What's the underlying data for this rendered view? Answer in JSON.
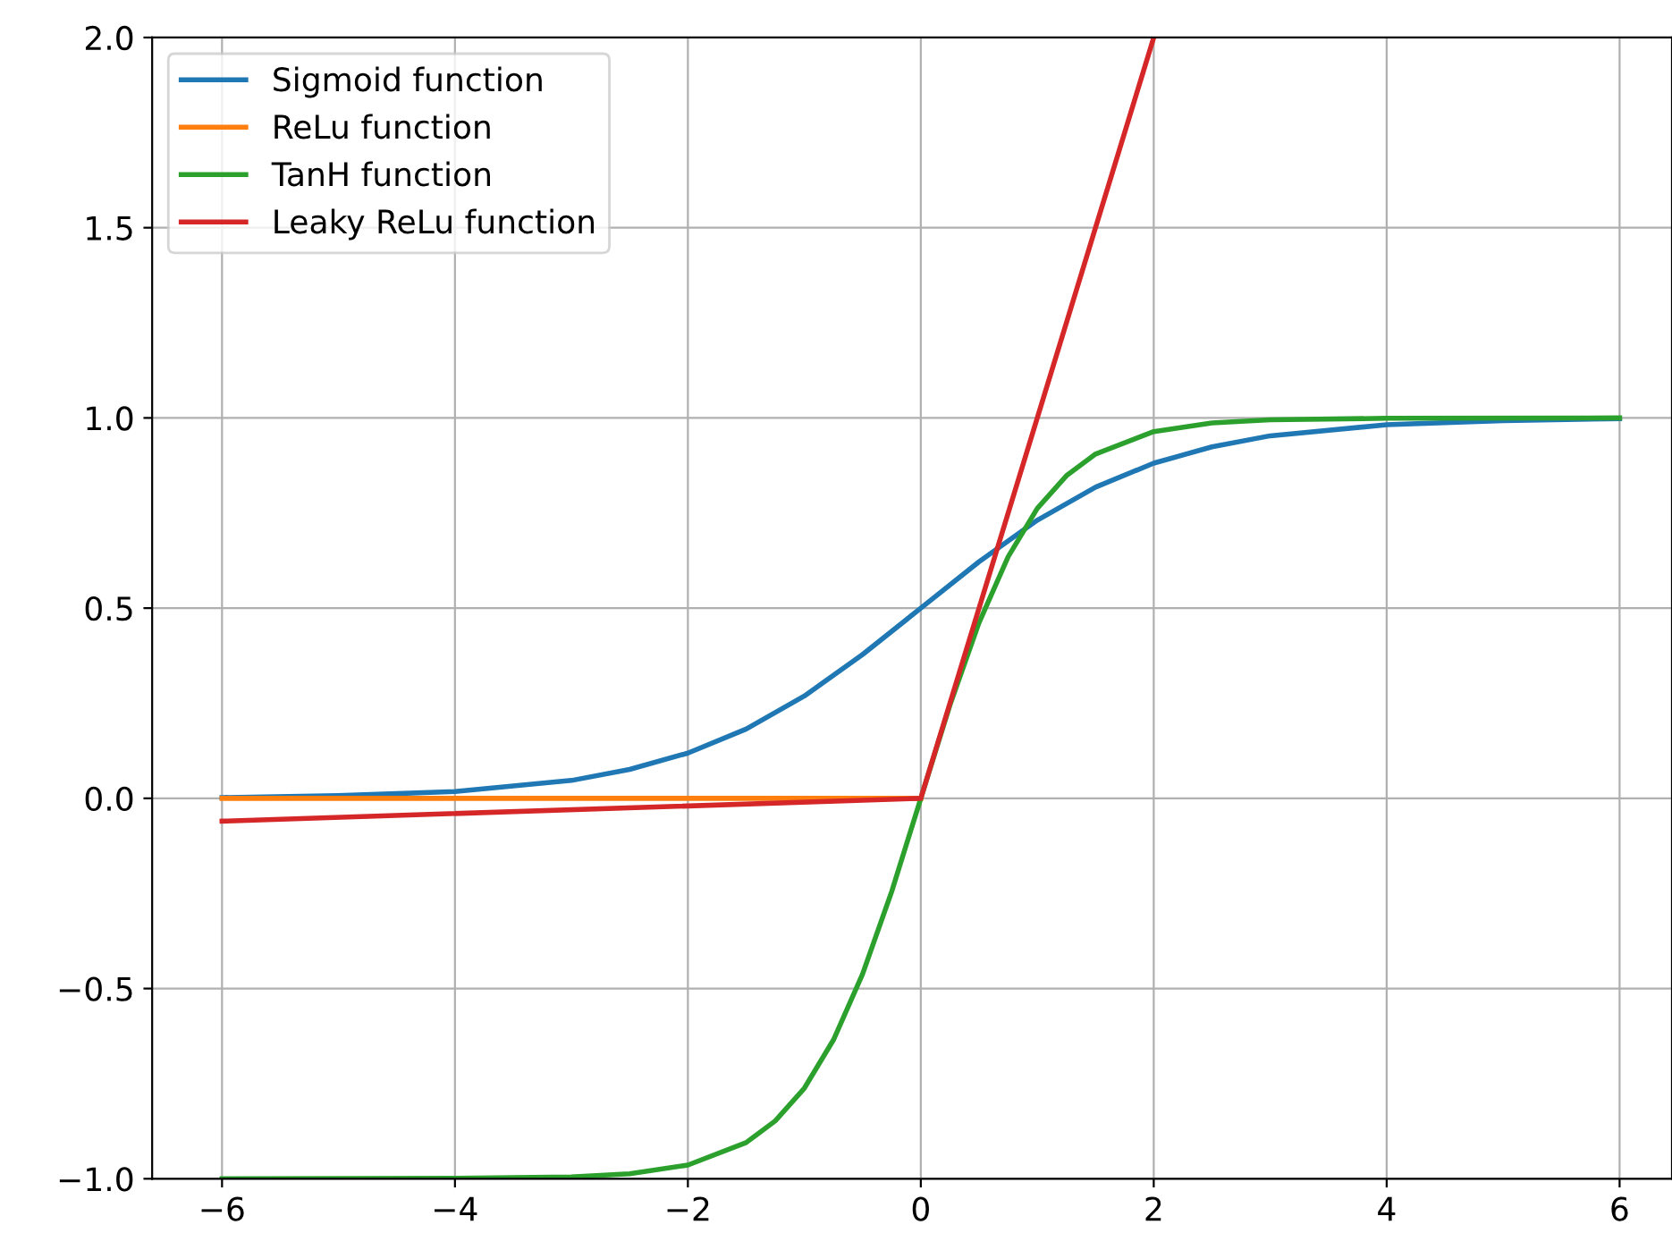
{
  "chart_data": {
    "type": "line",
    "xlim": [
      -6.6,
      6.45
    ],
    "ylim": [
      -1.0,
      2.0
    ],
    "xticks": [
      {
        "value": -6,
        "label": "−6"
      },
      {
        "value": -4,
        "label": "−4"
      },
      {
        "value": -2,
        "label": "−2"
      },
      0,
      2,
      4,
      6
    ],
    "yticks": [
      {
        "value": -1.0,
        "label": "−1.0"
      },
      {
        "value": -0.5,
        "label": "−0.5"
      },
      {
        "value": 0.0,
        "label": "0.0"
      },
      {
        "value": 0.5,
        "label": "0.5"
      },
      {
        "value": 1.0,
        "label": "1.0"
      },
      {
        "value": 1.5,
        "label": "1.5"
      },
      {
        "value": 2.0,
        "label": "2.0"
      }
    ],
    "grid": true,
    "legend": "top left",
    "line_style": "solid",
    "marker": "none",
    "series": [
      {
        "name": "Sigmoid function",
        "color": "#1f77b4",
        "x": [
          -6,
          -5,
          -4,
          -3,
          -2.5,
          -2,
          -1.5,
          -1,
          -0.5,
          0,
          0.5,
          1,
          1.5,
          2,
          2.5,
          3,
          4,
          5,
          6
        ],
        "values": [
          0.002,
          0.007,
          0.018,
          0.047,
          0.076,
          0.119,
          0.182,
          0.269,
          0.378,
          0.5,
          0.622,
          0.731,
          0.818,
          0.881,
          0.924,
          0.953,
          0.982,
          0.993,
          0.998
        ]
      },
      {
        "name": "ReLu function",
        "color": "#ff7f0e",
        "x": [
          -6,
          0
        ],
        "values": [
          0,
          0
        ]
      },
      {
        "name": "TanH function",
        "color": "#2ca02c",
        "x": [
          -6,
          -4,
          -3,
          -2.5,
          -2,
          -1.5,
          -1.25,
          -1,
          -0.75,
          -0.5,
          -0.25,
          0,
          0.25,
          0.5,
          0.75,
          1,
          1.25,
          1.5,
          2,
          2.5,
          3,
          4,
          6
        ],
        "values": [
          -1.0,
          -0.999,
          -0.995,
          -0.987,
          -0.964,
          -0.905,
          -0.848,
          -0.762,
          -0.635,
          -0.462,
          -0.245,
          0,
          0.245,
          0.462,
          0.635,
          0.762,
          0.848,
          0.905,
          0.964,
          0.987,
          0.995,
          0.999,
          1.0
        ]
      },
      {
        "name": "Leaky ReLu function",
        "color": "#d62728",
        "x": [
          -6,
          0,
          2
        ],
        "values": [
          -0.06,
          0,
          2
        ]
      }
    ]
  }
}
